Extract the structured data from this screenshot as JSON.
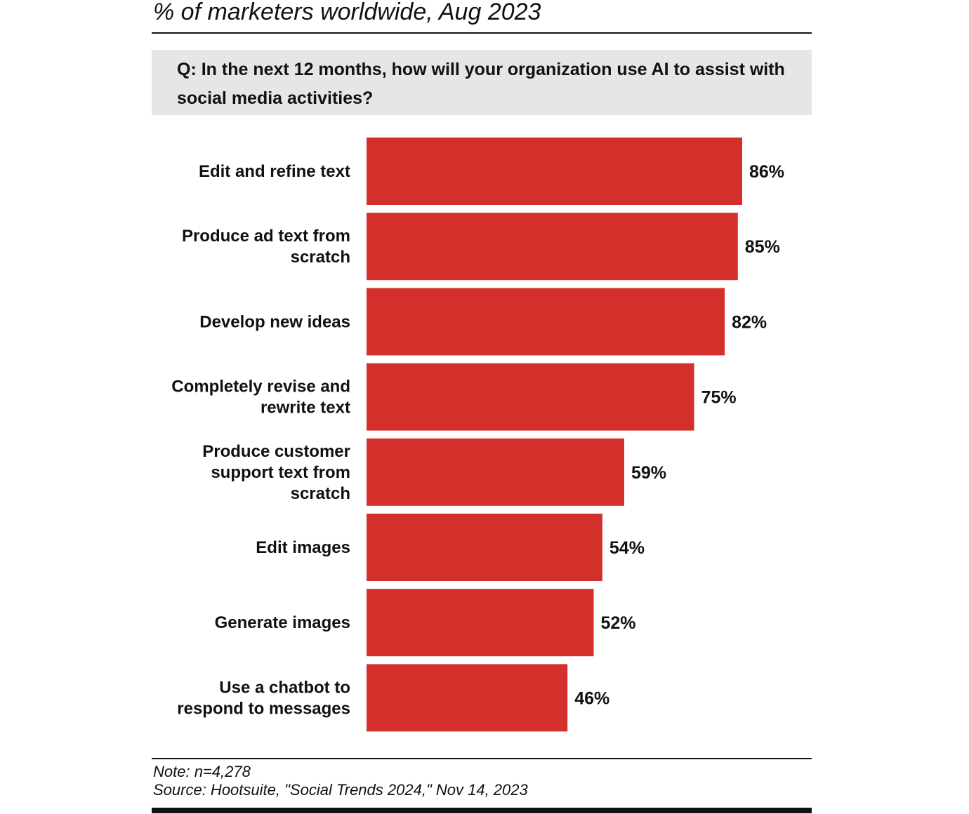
{
  "header": {
    "subtitle": "% of marketers worldwide, Aug 2023",
    "question": "Q: In the next 12 months, how will your organization use AI to assist with social media activities?"
  },
  "footer": {
    "note": "Note: n=4,278",
    "source": "Source: Hootsuite, \"Social Trends 2024,\" Nov 14, 2023"
  },
  "colors": {
    "bar": "#d4302b",
    "text": "#111111",
    "question_bg": "#e6e6e6"
  },
  "chart_data": {
    "type": "bar",
    "orientation": "horizontal",
    "title": "% of marketers worldwide, Aug 2023",
    "xlabel": "",
    "ylabel": "",
    "xlim": [
      0,
      86
    ],
    "grid": false,
    "categories": [
      [
        "Edit and refine text"
      ],
      [
        "Produce ad text from",
        "scratch"
      ],
      [
        "Develop new ideas"
      ],
      [
        "Completely revise and",
        "rewrite text"
      ],
      [
        "Produce customer",
        "support text from",
        "scratch"
      ],
      [
        "Edit images"
      ],
      [
        "Generate images"
      ],
      [
        "Use a chatbot to",
        "respond to messages"
      ]
    ],
    "values": [
      86,
      85,
      82,
      75,
      59,
      54,
      52,
      46
    ],
    "value_labels": [
      "86%",
      "85%",
      "82%",
      "75%",
      "59%",
      "54%",
      "52%",
      "46%"
    ]
  }
}
